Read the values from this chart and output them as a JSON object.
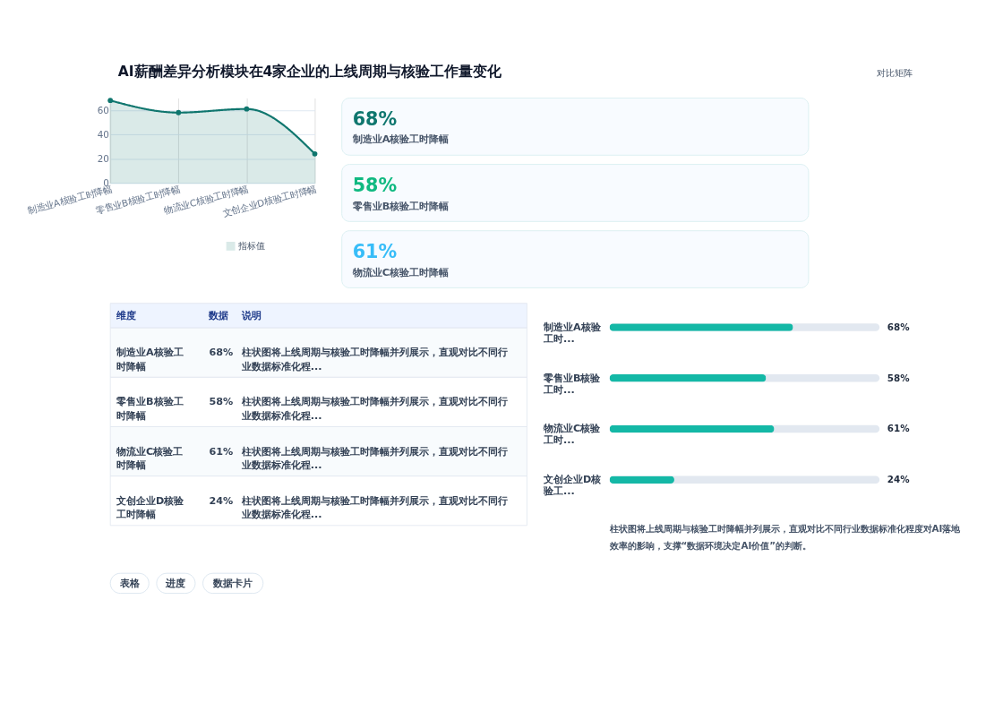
{
  "chart_data": [
    {
      "type": "area",
      "title": "AI薪酬差异分析模块在4家企业的上线周期与核验工作量变化",
      "annotations": [
        "对比矩阵"
      ],
      "categories": [
        "制造业A核验工时降幅",
        "零售业B核验工时降幅",
        "物流业C核验工时降幅",
        "文创企业D核验工时降幅"
      ],
      "series": [
        {
          "name": "指标值",
          "color": "#0f766e",
          "values": [
            68,
            58,
            61,
            24
          ]
        }
      ],
      "ylim": [
        0,
        70
      ],
      "yticks": [
        0,
        20,
        40,
        60
      ],
      "grid": true,
      "legend": "bottom",
      "marker": "circle",
      "line_style": "solid"
    },
    {
      "type": "other",
      "annotations": [
        "68%",
        "制造业A核验工时降幅",
        "58%",
        "零售业B核验工时降幅",
        "61%",
        "物流业C核验工时降幅"
      ],
      "colors": [
        "#0f766e",
        "#10b981",
        "#38bdf8"
      ]
    },
    {
      "type": "other",
      "annotations": [
        "维度",
        "数据",
        "说明",
        "制造业A核验工时降幅",
        "68%",
        "柱状图将上线周期与核验工时降幅并列展示，直观对比不同行业数据标准化程...",
        "零售业B核验工时降幅",
        "58%",
        "柱状图将上线周期与核验工时降幅并列展示，直观对比不同行业数据标准化程...",
        "物流业C核验工时降幅",
        "61%",
        "柱状图将上线周期与核验工时降幅并列展示，直观对比不同行业数据标准化程...",
        "文创企业D核验工时降幅",
        "24%",
        "柱状图将上线周期与核验工时降幅并列展示，直观对比不同行业数据标准化程..."
      ]
    },
    {
      "type": "bar",
      "orientation": "horizontal",
      "categories": [
        "制造业A核验工时...",
        "零售业B核验工时...",
        "物流业C核验工时...",
        "文创企业D核验工..."
      ],
      "values": [
        68,
        58,
        61,
        24
      ],
      "value_labels": [
        "68%",
        "58%",
        "61%",
        "24%"
      ],
      "color": "#14b8a6",
      "xlim": [
        0,
        100
      ],
      "tick_labels": "y",
      "annotations": [
        "柱状图将上线周期与核验工时降幅并列展示，直观对比不同行业数据标准化程度对AI落地效率的影响，支撑“数据环境决定AI价值”的判断。",
        "表格",
        "进度",
        "数据卡片"
      ]
    }
  ]
}
